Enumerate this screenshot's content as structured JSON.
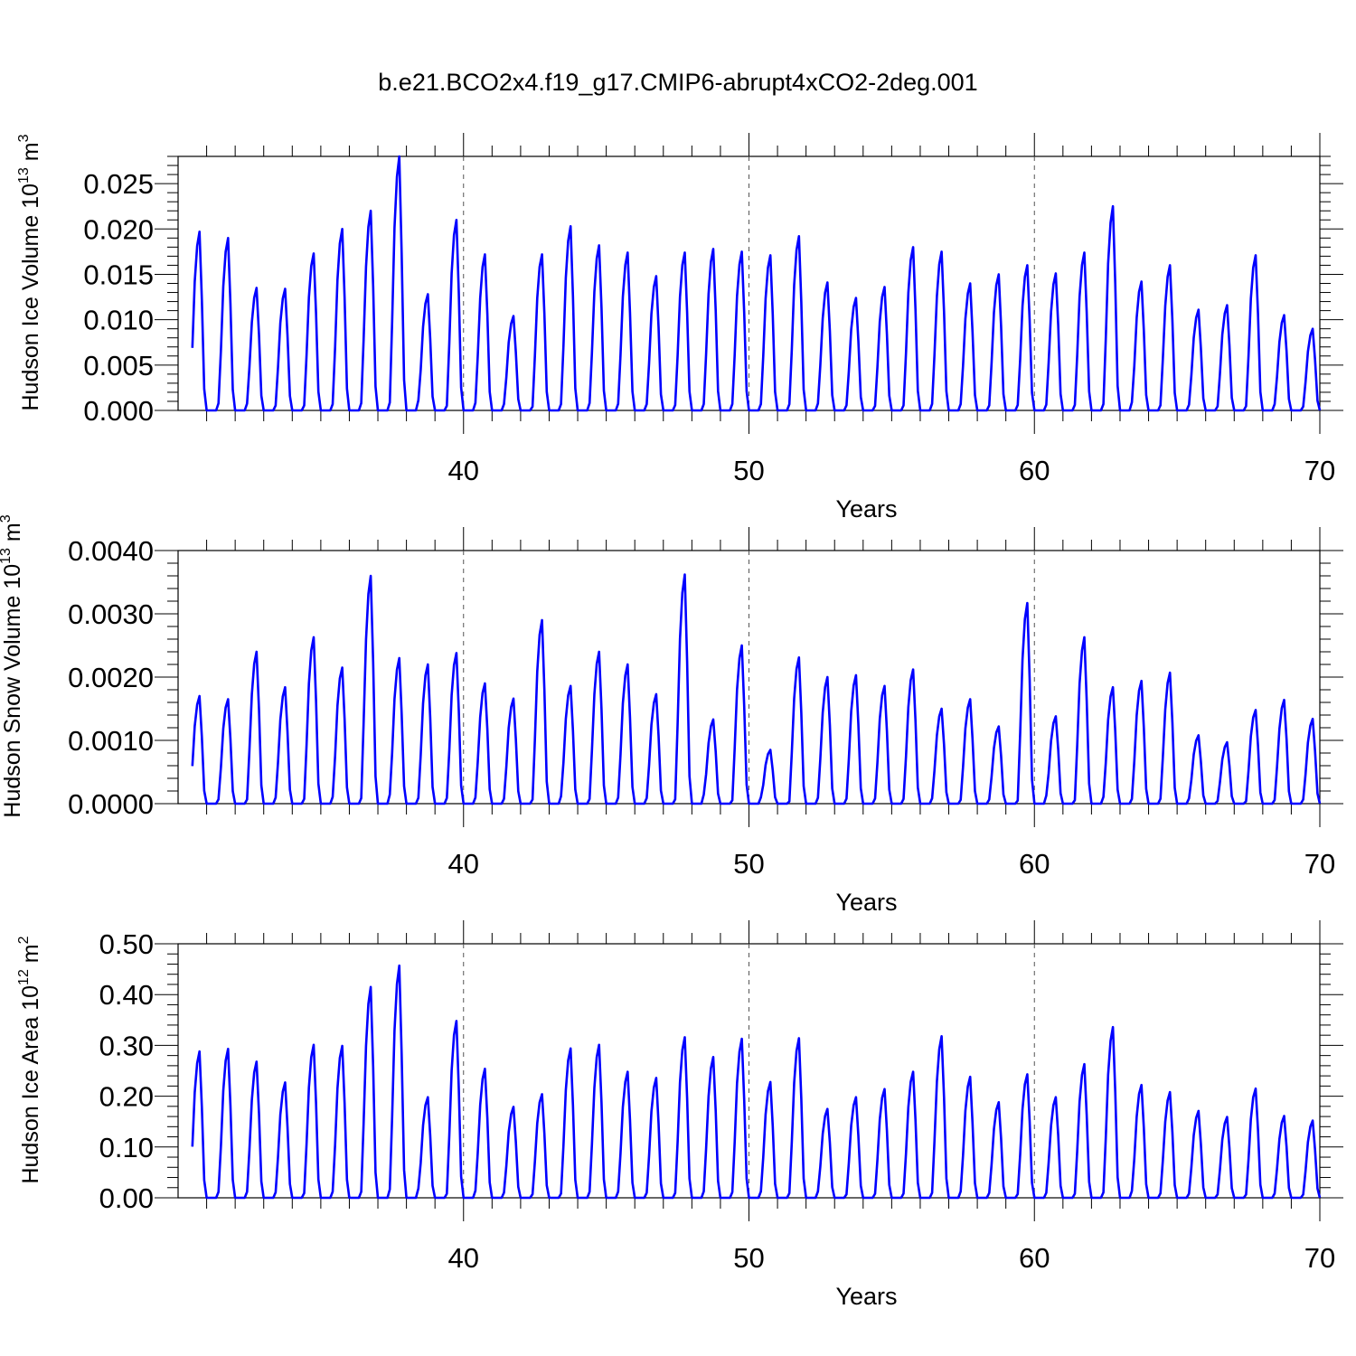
{
  "figure_title": "b.e21.BCO2x4.f19_g17.CMIP6-abrupt4xCO2-2deg.001",
  "colors": {
    "series": "#0000ff",
    "axes": "#000000",
    "grid": "#555555"
  },
  "chart_data": [
    {
      "type": "line",
      "id": "ice-volume",
      "xlabel": "Years",
      "ylabel": {
        "text": "Hudson Ice Volume 10",
        "exp": "13",
        "unit": "m",
        "unit_exp": "3"
      },
      "xlim": [
        30,
        70
      ],
      "ylim": [
        0,
        0.028
      ],
      "xticks": [
        40,
        50,
        60,
        70
      ],
      "xtick_labels": [
        "40",
        "50",
        "60",
        "70"
      ],
      "yticks": [
        0,
        0.005,
        0.01,
        0.015,
        0.02,
        0.025
      ],
      "ytick_labels": [
        "0.000",
        "0.005",
        "0.010",
        "0.015",
        "0.020",
        "0.025"
      ],
      "grid_x": [
        40,
        50,
        60
      ],
      "series_name": "Hudson Ice Volume",
      "peaks": [
        0.0197,
        0.019,
        0.0135,
        0.0134,
        0.0173,
        0.02,
        0.022,
        0.028,
        0.0128,
        0.021,
        0.0172,
        0.0104,
        0.0172,
        0.0203,
        0.0182,
        0.0174,
        0.0148,
        0.0174,
        0.0178,
        0.0175,
        0.0171,
        0.0192,
        0.0141,
        0.0124,
        0.0136,
        0.018,
        0.0175,
        0.014,
        0.015,
        0.016,
        0.0151,
        0.0174,
        0.0225,
        0.0142,
        0.016,
        0.0111,
        0.0116,
        0.0171,
        0.0105,
        0.009
      ]
    },
    {
      "type": "line",
      "id": "snow-volume",
      "xlabel": "Years",
      "ylabel": {
        "text": "Hudson Snow Volume 10",
        "exp": "13",
        "unit": "m",
        "unit_exp": "3"
      },
      "xlim": [
        30,
        70
      ],
      "ylim": [
        0,
        0.004
      ],
      "xticks": [
        40,
        50,
        60,
        70
      ],
      "xtick_labels": [
        "40",
        "50",
        "60",
        "70"
      ],
      "yticks": [
        0,
        0.001,
        0.002,
        0.003,
        0.004
      ],
      "ytick_labels": [
        "0.0000",
        "0.0010",
        "0.0020",
        "0.0030",
        "0.0040"
      ],
      "grid_x": [
        40,
        50,
        60
      ],
      "series_name": "Hudson Snow Volume",
      "peaks": [
        0.0017,
        0.00165,
        0.0024,
        0.00184,
        0.00263,
        0.00215,
        0.0036,
        0.0023,
        0.0022,
        0.00238,
        0.0019,
        0.00166,
        0.0029,
        0.00186,
        0.0024,
        0.0022,
        0.00173,
        0.00362,
        0.00133,
        0.0025,
        0.00085,
        0.00231,
        0.002,
        0.00203,
        0.00186,
        0.00212,
        0.0015,
        0.00165,
        0.00122,
        0.00317,
        0.00138,
        0.00263,
        0.00184,
        0.00194,
        0.00207,
        0.00108,
        0.00097,
        0.00148,
        0.00164,
        0.00134
      ]
    },
    {
      "type": "line",
      "id": "ice-area",
      "xlabel": "Years",
      "ylabel": {
        "text": "Hudson Ice Area 10",
        "exp": "12",
        "unit": "m",
        "unit_exp": "2"
      },
      "xlim": [
        30,
        70
      ],
      "ylim": [
        0,
        0.5
      ],
      "xticks": [
        40,
        50,
        60,
        70
      ],
      "xtick_labels": [
        "40",
        "50",
        "60",
        "70"
      ],
      "yticks": [
        0,
        0.1,
        0.2,
        0.3,
        0.4,
        0.5
      ],
      "ytick_labels": [
        "0.00",
        "0.10",
        "0.20",
        "0.30",
        "0.40",
        "0.50"
      ],
      "grid_x": [
        40,
        50,
        60
      ],
      "series_name": "Hudson Ice Area",
      "peaks": [
        0.288,
        0.293,
        0.268,
        0.227,
        0.301,
        0.299,
        0.415,
        0.457,
        0.198,
        0.348,
        0.254,
        0.179,
        0.204,
        0.294,
        0.301,
        0.248,
        0.236,
        0.316,
        0.277,
        0.313,
        0.228,
        0.314,
        0.175,
        0.198,
        0.214,
        0.248,
        0.318,
        0.238,
        0.188,
        0.243,
        0.198,
        0.263,
        0.336,
        0.222,
        0.208,
        0.171,
        0.159,
        0.215,
        0.161,
        0.152
      ]
    }
  ]
}
